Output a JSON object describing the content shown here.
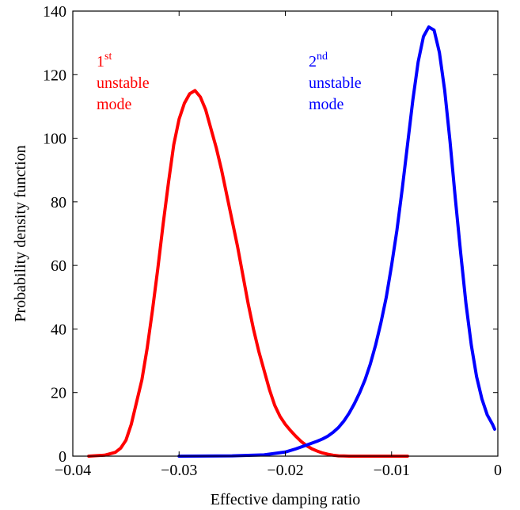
{
  "chart_data": {
    "type": "line",
    "title": "",
    "xlabel": "Effective damping ratio",
    "ylabel": "Probability density function",
    "xlim": [
      -0.04,
      0
    ],
    "ylim": [
      0,
      140
    ],
    "xticks": [
      -0.04,
      -0.03,
      -0.02,
      -0.01,
      0
    ],
    "xtick_labels": [
      "−0.04",
      "−0.03",
      "−0.02",
      "−0.01",
      "0"
    ],
    "yticks": [
      0,
      20,
      40,
      60,
      80,
      100,
      120,
      140
    ],
    "ytick_labels": [
      "0",
      "20",
      "40",
      "60",
      "80",
      "100",
      "120",
      "140"
    ],
    "grid": false,
    "series": [
      {
        "color": "#ff0000",
        "x": [
          -0.0385,
          -0.037,
          -0.036,
          -0.0355,
          -0.035,
          -0.0345,
          -0.034,
          -0.0335,
          -0.033,
          -0.0325,
          -0.032,
          -0.0315,
          -0.031,
          -0.0305,
          -0.03,
          -0.0295,
          -0.029,
          -0.0285,
          -0.028,
          -0.0275,
          -0.027,
          -0.0265,
          -0.026,
          -0.0255,
          -0.025,
          -0.0245,
          -0.024,
          -0.0235,
          -0.023,
          -0.0225,
          -0.022,
          -0.0215,
          -0.021,
          -0.0205,
          -0.02,
          -0.0195,
          -0.019,
          -0.0185,
          -0.018,
          -0.0175,
          -0.017,
          -0.0165,
          -0.016,
          -0.0155,
          -0.015,
          -0.0145,
          -0.014,
          -0.013,
          -0.012,
          -0.01,
          -0.0085
        ],
        "y": [
          0,
          0.3,
          1.2,
          2.5,
          5,
          10,
          17,
          24,
          34,
          46,
          59,
          73,
          86,
          98,
          106,
          111,
          114,
          115,
          113,
          109,
          103,
          97,
          90,
          82,
          74,
          66,
          57,
          48,
          40,
          33,
          27,
          21,
          16,
          12.5,
          10,
          8,
          6.2,
          4.6,
          3.3,
          2.3,
          1.6,
          1.0,
          0.6,
          0.3,
          0.1,
          0.05,
          0,
          0,
          0,
          0,
          0
        ]
      },
      {
        "color": "#0000ff",
        "x": [
          -0.03,
          -0.025,
          -0.022,
          -0.02,
          -0.019,
          -0.018,
          -0.017,
          -0.0165,
          -0.016,
          -0.0155,
          -0.015,
          -0.0145,
          -0.014,
          -0.0135,
          -0.013,
          -0.0125,
          -0.012,
          -0.0115,
          -0.011,
          -0.0105,
          -0.01,
          -0.0095,
          -0.009,
          -0.0085,
          -0.008,
          -0.0075,
          -0.007,
          -0.0065,
          -0.006,
          -0.0055,
          -0.005,
          -0.0045,
          -0.004,
          -0.0035,
          -0.003,
          -0.0025,
          -0.002,
          -0.0015,
          -0.001,
          -0.0005,
          -0.0003
        ],
        "y": [
          0,
          0.1,
          0.4,
          1.3,
          2.3,
          3.5,
          4.7,
          5.4,
          6.3,
          7.5,
          9,
          11,
          13.5,
          16.5,
          20,
          24,
          29,
          35,
          42,
          50,
          60,
          71,
          84,
          98,
          112,
          124,
          132,
          135,
          134,
          127,
          115,
          99,
          81,
          64,
          48,
          35,
          25,
          18,
          13,
          10,
          8.5
        ]
      }
    ],
    "annotations": [
      {
        "color": "#ff0000",
        "base": "1",
        "sup": "st",
        "lines": [
          "unstable",
          "mode"
        ]
      },
      {
        "color": "#0000ff",
        "base": "2",
        "sup": "nd",
        "lines": [
          "unstable",
          "mode"
        ]
      }
    ]
  }
}
